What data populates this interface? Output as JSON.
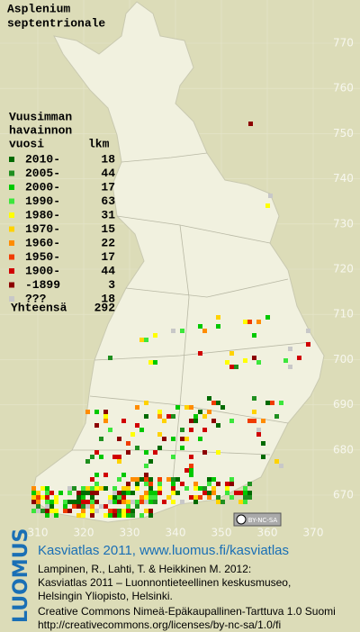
{
  "title": [
    "Asplenium",
    "septentrionale"
  ],
  "legend": {
    "header": [
      "Vuusimman",
      "havainnon",
      "vuosi"
    ],
    "count_header": "lkm",
    "entries": [
      {
        "label": "2010-",
        "count": 18,
        "color": "#006a00"
      },
      {
        "label": "2005-",
        "count": 44,
        "color": "#1f8f1f"
      },
      {
        "label": "2000-",
        "count": 17,
        "color": "#00c800"
      },
      {
        "label": "1990-",
        "count": 63,
        "color": "#3ce63c"
      },
      {
        "label": "1980-",
        "count": 31,
        "color": "#ffff00"
      },
      {
        "label": "1970-",
        "count": 15,
        "color": "#ffd200"
      },
      {
        "label": "1960-",
        "count": 22,
        "color": "#ff8c00"
      },
      {
        "label": "1950-",
        "count": 17,
        "color": "#f03c00"
      },
      {
        "label": "1900-",
        "count": 44,
        "color": "#d00000"
      },
      {
        "label": "-1899",
        "count": 3,
        "color": "#8c0000"
      },
      {
        "label": "???",
        "count": 18,
        "color": "#c8c8c8"
      }
    ],
    "total_label": "Yhteensä",
    "total": 292
  },
  "grid": {
    "north": [
      770,
      760,
      750,
      740,
      730,
      720,
      710,
      700,
      690,
      680,
      670
    ],
    "east": [
      310,
      320,
      330,
      340,
      350,
      360,
      370
    ]
  },
  "badge": "BY-NC-SA",
  "footer": {
    "logo": "LUOMUS",
    "headline": "Kasviatlas 2011, www.luomus.fi/kasviatlas",
    "citation": [
      "Lampinen, R., Lahti, T. & Heikkinen M. 2012:",
      "Kasviatlas 2011 – Luonnontieteellinen keskusmuseo,",
      "Helsingin Yliopisto, Helsinki."
    ],
    "license": [
      "Creative Commons Nimeä-Epäkaupallinen-Tarttuva 1.0 Suomi",
      "http://creativecommons.org/licenses/by-nc-sa/1.0/fi"
    ]
  }
}
